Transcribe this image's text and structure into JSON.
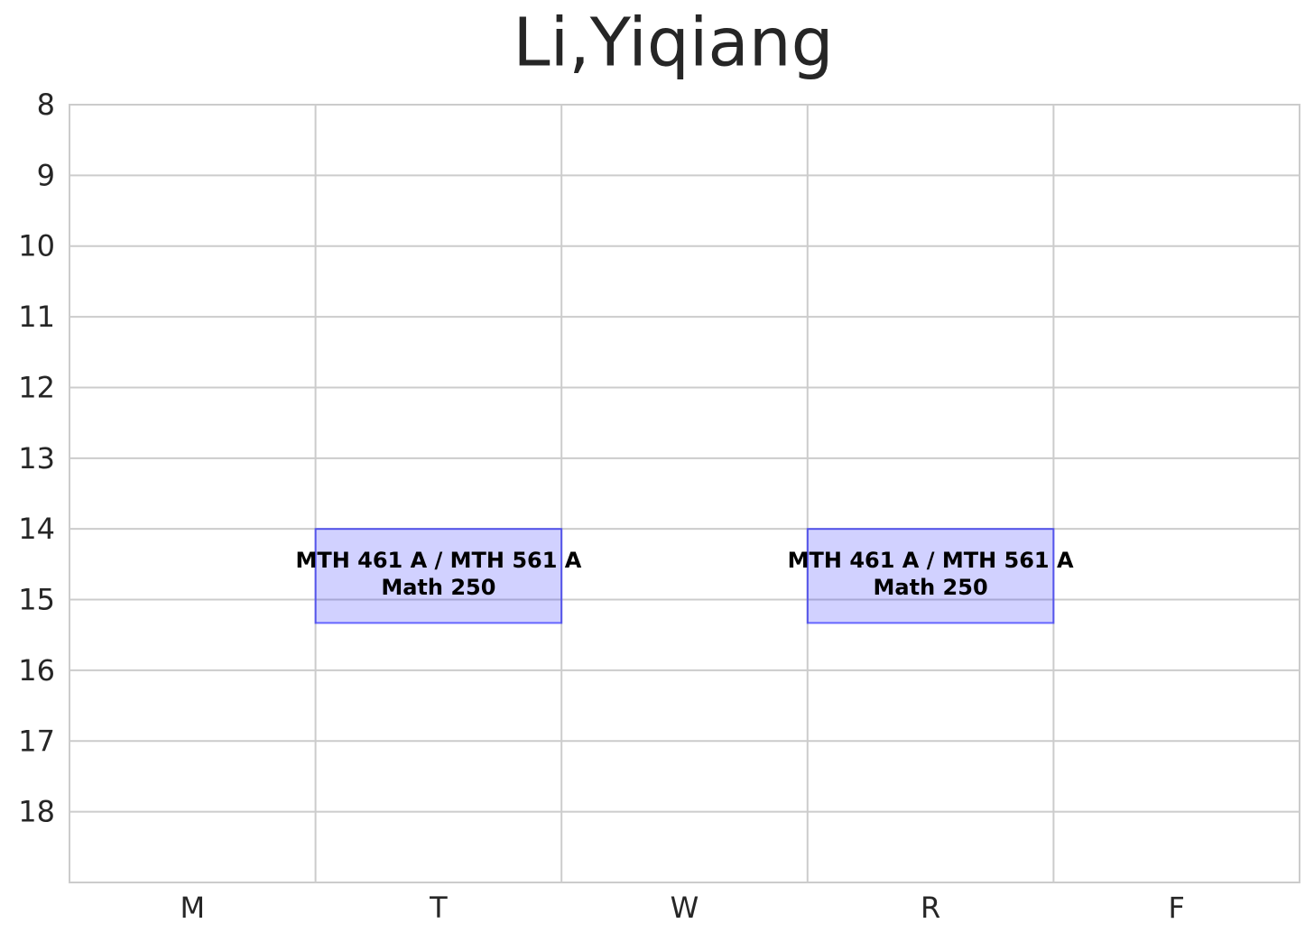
{
  "chart_data": {
    "type": "schedule",
    "title": "Li,Yiqiang",
    "categories": [
      "M",
      "T",
      "W",
      "R",
      "F"
    ],
    "ylim": [
      8,
      19
    ],
    "yticks": [
      8,
      9,
      10,
      11,
      12,
      13,
      14,
      15,
      16,
      17,
      18
    ],
    "y_inverted": true,
    "grid": true,
    "color": "#0000ff",
    "events": [
      {
        "day": "T",
        "start": 14,
        "end": 15.33,
        "course": "MTH 461 A / MTH 561 A",
        "room": "Math 250"
      },
      {
        "day": "R",
        "start": 14,
        "end": 15.33,
        "course": "MTH 461 A / MTH 561 A",
        "room": "Math 250"
      }
    ]
  }
}
